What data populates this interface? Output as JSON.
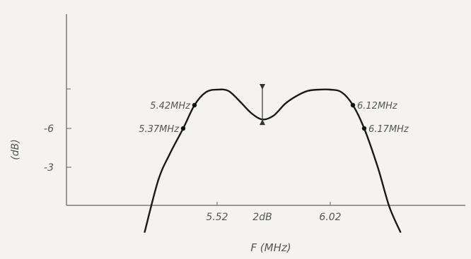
{
  "chart_data": {
    "type": "line",
    "title": "",
    "xlabel": "F (MHz)",
    "ylabel": "(dB)",
    "y_ticks": [
      {
        "value": -6,
        "label": "-6"
      },
      {
        "value": -3,
        "label": "-3"
      }
    ],
    "x_ticks": [
      {
        "value": 5.52,
        "label": "5.52"
      },
      {
        "value": 6.02,
        "label": "6.02"
      }
    ],
    "ylim": [
      -10.5,
      3
    ],
    "xlim": [
      5.1,
      6.45
    ],
    "series": [
      {
        "x": [
          5.2,
          5.26,
          5.31,
          5.37,
          5.42,
          5.47,
          5.52,
          5.57,
          5.62,
          5.67,
          5.72,
          5.77,
          5.82,
          5.87,
          5.92,
          5.97,
          6.02,
          6.07,
          6.12,
          6.17,
          6.23,
          6.28,
          6.33
        ],
        "y": [
          2.0,
          -2.0,
          -4.0,
          -6.0,
          -7.8,
          -8.8,
          -9.0,
          -8.9,
          -8.1,
          -7.2,
          -6.7,
          -7.0,
          -7.9,
          -8.5,
          -8.9,
          -9.0,
          -9.0,
          -8.8,
          -7.8,
          -6.0,
          -3.0,
          0.0,
          2.0
        ]
      }
    ],
    "annotations": [
      {
        "label": "5.37MHz",
        "x": 5.37,
        "y": -6.0,
        "side": "left"
      },
      {
        "label": "5.42MHz",
        "x": 5.42,
        "y": -7.8,
        "side": "left"
      },
      {
        "label": "6.17MHz",
        "x": 6.17,
        "y": -6.0,
        "side": "right"
      },
      {
        "label": "6.12MHz",
        "x": 6.12,
        "y": -7.8,
        "side": "right"
      }
    ],
    "ripple": {
      "label": "2dB",
      "x": 5.72,
      "y_top": -6.7,
      "y_bottom": -9.0
    },
    "grid": false,
    "colors": {
      "curve": "#1a1a1a",
      "axis": "#666666",
      "text": "#555555"
    }
  }
}
